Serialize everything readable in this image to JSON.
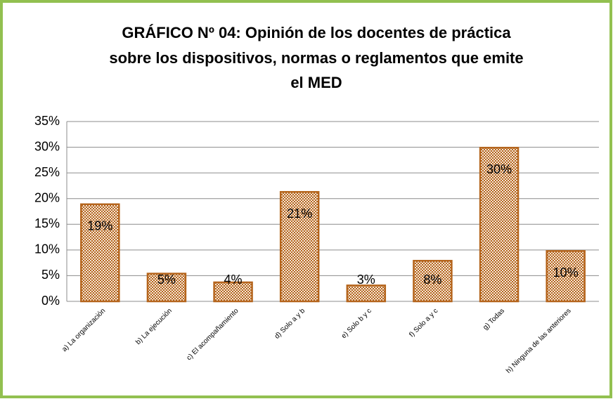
{
  "chart_data": {
    "type": "bar",
    "title": [
      "GRÁFICO Nº 04: Opinión  de los docentes de práctica",
      "sobre los dispositivos, normas o reglamentos que emite",
      "el MED"
    ],
    "categories": [
      "a) La organización",
      "b) La ejecución",
      "c) El acompañamiento",
      "d) Solo a y b",
      "e) Solo b y c",
      "f) Solo a y c",
      "g) Todas",
      "h) Ninguna de las anteriores"
    ],
    "values": [
      18.9,
      5.4,
      3.7,
      21.3,
      3.1,
      7.9,
      29.9,
      9.8
    ],
    "value_labels": [
      "19%",
      "5%",
      "4%",
      "21%",
      "3%",
      "8%",
      "30%",
      "10%"
    ],
    "color": "#b5651d",
    "ylim": [
      0,
      35
    ],
    "yticks": [
      {
        "value": 0,
        "label": "0%"
      },
      {
        "value": 5,
        "label": "5%"
      },
      {
        "value": 10,
        "label": "10%"
      },
      {
        "value": 15,
        "label": "15%"
      },
      {
        "value": 20,
        "label": "20%"
      },
      {
        "value": 25,
        "label": "25%"
      },
      {
        "value": 30,
        "label": "30%"
      },
      {
        "value": 35,
        "label": "35%"
      }
    ],
    "grid": true
  }
}
